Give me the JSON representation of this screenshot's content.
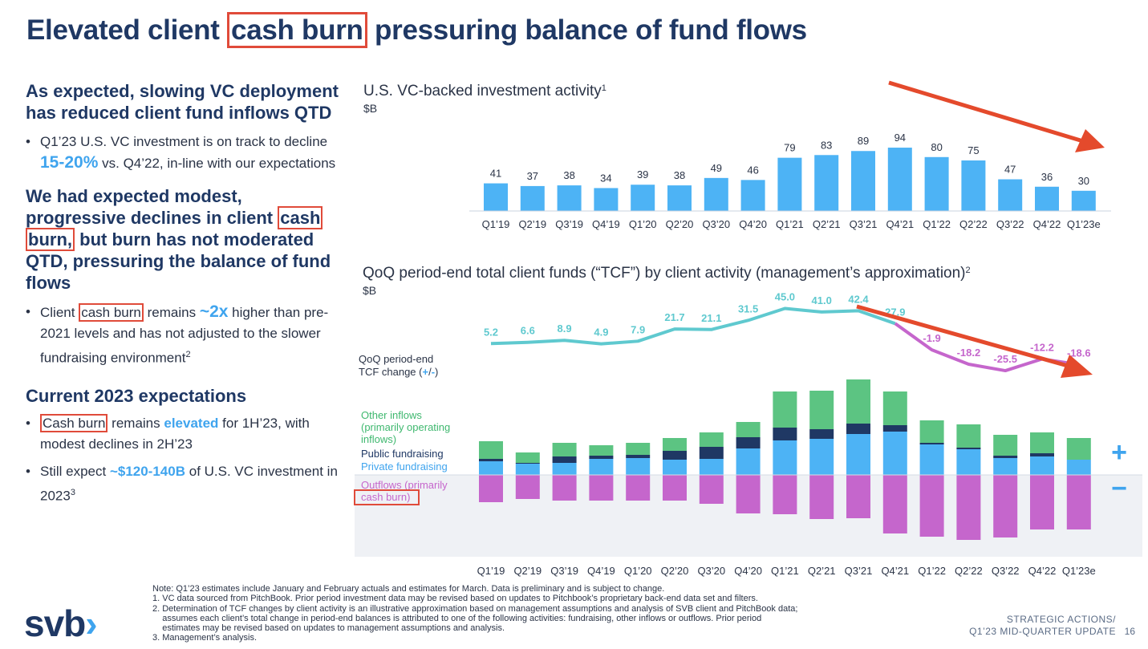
{
  "title": {
    "pre": "Elevated client",
    "highlight": "cash burn",
    "post": "pressuring balance of fund flows"
  },
  "left": {
    "h1": "As expected, slowing VC deployment has reduced client fund inflows QTD",
    "b1": {
      "pre": "Q1’23 U.S. VC investment is on track to decline",
      "accent": "15-20%",
      "post": "vs. Q4’22, in-line with our expectations"
    },
    "h2": {
      "pre": "We had expected modest, progressive declines in client",
      "box1": "cash",
      "box2": "burn,",
      "post": "but burn has not moderated QTD, pressuring the balance of fund flows"
    },
    "b2": {
      "box": "cash burn",
      "pre": "Client",
      "mid": "remains",
      "accent": "~2x",
      "post": "higher than pre-2021 levels and has not adjusted to the slower fundraising environment",
      "sup": "2"
    },
    "h3": "Current 2023 expectations",
    "b3": {
      "box": "Cash burn",
      "mid": "remains",
      "accent": "elevated",
      "post": "for 1H’23, with modest declines in 2H’23"
    },
    "b4": {
      "pre": "Still expect",
      "accent": "~$120-140B",
      "post": "of U.S. VC investment in 2023",
      "sup": "3"
    }
  },
  "chart_data": [
    {
      "type": "bar",
      "title": "U.S. VC-backed investment activity",
      "title_sup": "1",
      "ylabel": "$B",
      "categories": [
        "Q1’19",
        "Q2’19",
        "Q3’19",
        "Q4’19",
        "Q1’20",
        "Q2’20",
        "Q3’20",
        "Q4’20",
        "Q1’21",
        "Q2’21",
        "Q3’21",
        "Q4’21",
        "Q1’22",
        "Q2’22",
        "Q3’22",
        "Q4’22",
        "Q1’23e"
      ],
      "values": [
        41,
        37,
        38,
        34,
        39,
        38,
        49,
        46,
        79,
        83,
        89,
        94,
        80,
        75,
        47,
        36,
        30
      ],
      "ylim": [
        0,
        100
      ],
      "color": "#4db3f5",
      "annotation": "red downward trend arrow"
    },
    {
      "type": "bar",
      "stacked": true,
      "title": "QoQ period-end total client funds (“TCF”) by client activity (management’s approximation)",
      "title_sup": "2",
      "ylabel": "$B",
      "categories": [
        "Q1’19",
        "Q2’19",
        "Q3’19",
        "Q4’19",
        "Q1’20",
        "Q2’20",
        "Q3’20",
        "Q4’20",
        "Q1’21",
        "Q2’21",
        "Q3’21",
        "Q4’21",
        "Q1’22",
        "Q2’22",
        "Q3’22",
        "Q4’22",
        "Q1’23e"
      ],
      "series": [
        {
          "name": "Private fundraising",
          "color": "#4db3f5",
          "values": [
            17,
            14,
            15,
            20,
            21,
            19,
            20,
            33,
            43,
            45,
            51,
            54,
            38,
            32,
            21,
            23,
            19
          ]
        },
        {
          "name": "Public fundraising",
          "color": "#1f3864",
          "values": [
            3,
            1,
            8,
            4,
            4,
            11,
            15,
            14,
            16,
            12,
            13,
            8,
            2,
            2,
            3,
            4,
            0
          ]
        },
        {
          "name": "Other inflows (primarily operating inflows)",
          "color": "#5cc482",
          "values": [
            22,
            13,
            17,
            13,
            15,
            16,
            18,
            19,
            45,
            48,
            55,
            42,
            28,
            29,
            26,
            26,
            27
          ]
        },
        {
          "name": "Outflows (primarily cash burn)",
          "color": "#c566cc",
          "values": [
            -34,
            -30,
            -32,
            -32,
            -32,
            -32,
            -36,
            -48,
            -49,
            -55,
            -54,
            -73,
            -77,
            -81,
            -78,
            -68,
            -68
          ]
        }
      ],
      "line": {
        "name": "QoQ period-end TCF change (+/-)",
        "values": [
          5.2,
          6.6,
          8.9,
          4.9,
          7.9,
          21.7,
          21.1,
          31.5,
          45.0,
          41.0,
          42.4,
          27.9,
          -1.9,
          -18.2,
          -25.5,
          -12.2,
          -18.6
        ],
        "positive_color": "#5fc9cf",
        "negative_color": "#c566cc"
      },
      "labels": {
        "tcf_line": "QoQ period-end",
        "tcf_line2": "TCF change (",
        "tcf_plus": "+",
        "tcf_sep": "/",
        "tcf_minus": "-",
        "tcf_close": ")",
        "other1": "Other inflows",
        "other2": "(primarily operating",
        "other3": "inflows)",
        "public": "Public fundraising",
        "private": "Private fundraising",
        "out1": "Outflows (primarily",
        "out2": "cash burn)",
        "plus_sign": "+",
        "minus_sign": "−"
      },
      "annotation": "red downward trend arrow"
    }
  ],
  "notes": [
    "Note: Q1’23 estimates include January and February actuals and estimates for March. Data is preliminary and is subject to change.",
    "1. VC data sourced from PitchBook. Prior period investment data may be revised based on updates to Pitchbook’s proprietary back-end data set and filters.",
    "2. Determination of TCF changes by client activity is an illustrative approximation based on management assumptions and analysis of SVB client and PitchBook data;",
    "    assumes each client’s total change in period-end balances is attributed to one of the following activities: fundraising, other inflows or outflows. Prior period",
    "    estimates may be revised based on updates to management assumptions and analysis.",
    "3. Management’s analysis."
  ],
  "footer": {
    "logo": "svb",
    "logo_chevron": "›",
    "line1": "STRATEGIC ACTIONS/",
    "line2": "Q1’23 MID-QUARTER UPDATE",
    "page": "16"
  }
}
